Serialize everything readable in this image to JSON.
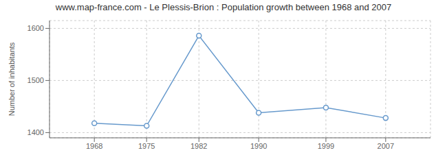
{
  "chart_data": {
    "type": "line",
    "title": "www.map-france.com - Le Plessis-Brion : Population growth between 1968 and 2007",
    "ylabel": "Number of inhabitants",
    "x": [
      1968,
      1975,
      1982,
      1990,
      1999,
      2007
    ],
    "values": [
      1418,
      1413,
      1586,
      1438,
      1448,
      1428
    ],
    "color": "#6699cc",
    "marker": "circle",
    "xlim": [
      1962,
      2013
    ],
    "xticks": [
      1968,
      1975,
      1982,
      1990,
      1999,
      2007
    ],
    "ylim": [
      1390,
      1615
    ],
    "yticks": [
      1400,
      1500,
      1600
    ],
    "grid": true
  }
}
